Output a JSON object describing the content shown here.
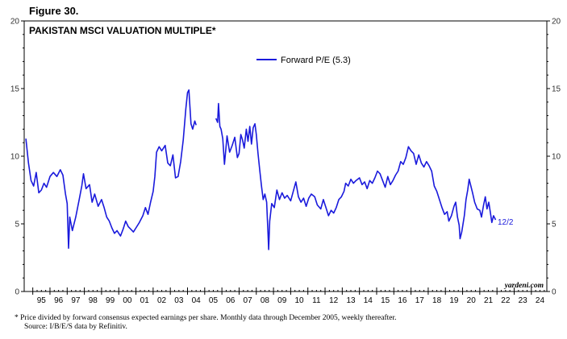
{
  "figure_label": "Figure 30.",
  "footnote": {
    "line1": "*  Price divided by forward consensus expected earnings per share. Monthly data through December 2005, weekly thereafter.",
    "line2": "Source: I/B/E/S data by Refinitiv."
  },
  "chart_data": {
    "type": "line",
    "title": "PAKISTAN MSCI VALUATION MULTIPLE*",
    "watermark": "yardeni.com",
    "end_label": "12/2",
    "ylim": [
      0,
      20
    ],
    "yticks": [
      0,
      5,
      10,
      15,
      20
    ],
    "xlim": [
      1994.5,
      2024.9
    ],
    "x_tick_labels": [
      "95",
      "96",
      "97",
      "98",
      "99",
      "00",
      "01",
      "02",
      "03",
      "04",
      "05",
      "06",
      "07",
      "08",
      "09",
      "10",
      "11",
      "12",
      "13",
      "14",
      "15",
      "16",
      "17",
      "18",
      "19",
      "20",
      "21",
      "22",
      "23",
      "24"
    ],
    "line_color": "#1a1adc",
    "legend_position": "top-center",
    "series": [
      {
        "name": "Forward P/E (5.3)",
        "segments": [
          [
            [
              1994.6,
              11.3
            ],
            [
              1994.75,
              9.5
            ],
            [
              1994.9,
              8.2
            ],
            [
              1995.05,
              7.8
            ],
            [
              1995.2,
              8.8
            ],
            [
              1995.35,
              7.3
            ],
            [
              1995.5,
              7.5
            ],
            [
              1995.65,
              8.0
            ],
            [
              1995.8,
              7.7
            ],
            [
              1996.0,
              8.5
            ],
            [
              1996.2,
              8.8
            ],
            [
              1996.4,
              8.5
            ],
            [
              1996.6,
              9.0
            ],
            [
              1996.75,
              8.6
            ],
            [
              1996.9,
              7.2
            ],
            [
              1997.0,
              6.5
            ],
            [
              1997.08,
              3.2
            ],
            [
              1997.15,
              5.5
            ],
            [
              1997.3,
              4.5
            ],
            [
              1997.5,
              5.5
            ],
            [
              1997.7,
              6.8
            ],
            [
              1997.85,
              7.8
            ],
            [
              1997.95,
              8.7
            ],
            [
              1998.1,
              7.6
            ],
            [
              1998.3,
              7.9
            ],
            [
              1998.45,
              6.6
            ],
            [
              1998.6,
              7.2
            ],
            [
              1998.8,
              6.3
            ],
            [
              1999.0,
              6.8
            ],
            [
              1999.15,
              6.2
            ],
            [
              1999.3,
              5.5
            ],
            [
              1999.45,
              5.2
            ],
            [
              1999.6,
              4.7
            ],
            [
              1999.75,
              4.3
            ],
            [
              1999.9,
              4.5
            ],
            [
              2000.1,
              4.1
            ],
            [
              2000.25,
              4.6
            ],
            [
              2000.4,
              5.2
            ],
            [
              2000.55,
              4.8
            ],
            [
              2000.7,
              4.6
            ],
            [
              2000.85,
              4.4
            ],
            [
              2001.0,
              4.7
            ],
            [
              2001.2,
              5.1
            ],
            [
              2001.4,
              5.6
            ],
            [
              2001.55,
              6.2
            ],
            [
              2001.7,
              5.7
            ],
            [
              2001.85,
              6.6
            ],
            [
              2002.0,
              7.4
            ],
            [
              2002.1,
              8.5
            ],
            [
              2002.2,
              10.3
            ],
            [
              2002.35,
              10.7
            ],
            [
              2002.5,
              10.4
            ],
            [
              2002.7,
              10.8
            ],
            [
              2002.85,
              9.5
            ],
            [
              2003.0,
              9.3
            ],
            [
              2003.15,
              10.1
            ],
            [
              2003.3,
              8.4
            ],
            [
              2003.45,
              8.5
            ],
            [
              2003.6,
              9.6
            ],
            [
              2003.75,
              11.2
            ],
            [
              2003.9,
              13.5
            ],
            [
              2004.0,
              14.7
            ],
            [
              2004.08,
              14.9
            ],
            [
              2004.2,
              12.4
            ],
            [
              2004.3,
              12.0
            ],
            [
              2004.42,
              12.6
            ],
            [
              2004.5,
              12.3
            ]
          ],
          [
            [
              2005.65,
              12.8
            ],
            [
              2005.75,
              12.5
            ],
            [
              2005.8,
              13.9
            ],
            [
              2005.88,
              12.2
            ],
            [
              2005.95,
              12.0
            ],
            [
              2006.05,
              11.3
            ],
            [
              2006.15,
              9.4
            ],
            [
              2006.3,
              11.5
            ],
            [
              2006.45,
              10.3
            ],
            [
              2006.6,
              10.8
            ],
            [
              2006.75,
              11.4
            ],
            [
              2006.9,
              9.9
            ],
            [
              2007.0,
              10.2
            ],
            [
              2007.1,
              11.6
            ],
            [
              2007.2,
              11.2
            ],
            [
              2007.3,
              10.6
            ],
            [
              2007.42,
              12.0
            ],
            [
              2007.52,
              11.1
            ],
            [
              2007.62,
              12.2
            ],
            [
              2007.72,
              10.9
            ],
            [
              2007.82,
              12.1
            ],
            [
              2007.92,
              12.4
            ],
            [
              2008.0,
              11.6
            ],
            [
              2008.1,
              10.2
            ],
            [
              2008.2,
              9.0
            ],
            [
              2008.3,
              7.8
            ],
            [
              2008.4,
              6.8
            ],
            [
              2008.5,
              7.2
            ],
            [
              2008.6,
              6.6
            ],
            [
              2008.68,
              4.3
            ],
            [
              2008.72,
              3.1
            ],
            [
              2008.78,
              5.2
            ],
            [
              2008.9,
              6.5
            ],
            [
              2009.05,
              6.2
            ],
            [
              2009.2,
              7.5
            ],
            [
              2009.35,
              6.8
            ],
            [
              2009.5,
              7.3
            ],
            [
              2009.65,
              6.9
            ],
            [
              2009.8,
              7.1
            ],
            [
              2010.0,
              6.7
            ],
            [
              2010.15,
              7.4
            ],
            [
              2010.3,
              8.1
            ],
            [
              2010.45,
              7.0
            ],
            [
              2010.6,
              6.6
            ],
            [
              2010.75,
              6.9
            ],
            [
              2010.9,
              6.3
            ],
            [
              2011.05,
              6.9
            ],
            [
              2011.2,
              7.2
            ],
            [
              2011.4,
              7.0
            ],
            [
              2011.55,
              6.4
            ],
            [
              2011.75,
              6.1
            ],
            [
              2011.9,
              6.8
            ],
            [
              2012.05,
              6.2
            ],
            [
              2012.2,
              5.6
            ],
            [
              2012.35,
              6.0
            ],
            [
              2012.5,
              5.8
            ],
            [
              2012.65,
              6.2
            ],
            [
              2012.8,
              6.8
            ],
            [
              2012.95,
              7.0
            ],
            [
              2013.1,
              7.4
            ],
            [
              2013.2,
              8.0
            ],
            [
              2013.35,
              7.8
            ],
            [
              2013.5,
              8.3
            ],
            [
              2013.65,
              8.0
            ],
            [
              2013.8,
              8.2
            ],
            [
              2014.0,
              8.4
            ],
            [
              2014.15,
              7.9
            ],
            [
              2014.3,
              8.1
            ],
            [
              2014.45,
              7.6
            ],
            [
              2014.6,
              8.2
            ],
            [
              2014.75,
              8.0
            ],
            [
              2014.9,
              8.4
            ],
            [
              2015.05,
              8.9
            ],
            [
              2015.2,
              8.7
            ],
            [
              2015.35,
              8.2
            ],
            [
              2015.5,
              7.7
            ],
            [
              2015.65,
              8.5
            ],
            [
              2015.8,
              7.9
            ],
            [
              2015.95,
              8.2
            ],
            [
              2016.1,
              8.6
            ],
            [
              2016.25,
              8.9
            ],
            [
              2016.4,
              9.6
            ],
            [
              2016.55,
              9.4
            ],
            [
              2016.7,
              9.9
            ],
            [
              2016.85,
              10.7
            ],
            [
              2017.0,
              10.4
            ],
            [
              2017.15,
              10.2
            ],
            [
              2017.3,
              9.4
            ],
            [
              2017.45,
              10.1
            ],
            [
              2017.6,
              9.5
            ],
            [
              2017.75,
              9.2
            ],
            [
              2017.9,
              9.6
            ],
            [
              2018.05,
              9.3
            ],
            [
              2018.2,
              8.9
            ],
            [
              2018.35,
              7.8
            ],
            [
              2018.5,
              7.4
            ],
            [
              2018.65,
              6.8
            ],
            [
              2018.8,
              6.2
            ],
            [
              2018.95,
              5.7
            ],
            [
              2019.1,
              5.9
            ],
            [
              2019.2,
              5.2
            ],
            [
              2019.35,
              5.6
            ],
            [
              2019.5,
              6.3
            ],
            [
              2019.6,
              6.6
            ],
            [
              2019.7,
              5.5
            ],
            [
              2019.8,
              4.9
            ],
            [
              2019.85,
              3.9
            ],
            [
              2019.95,
              4.4
            ],
            [
              2020.1,
              5.6
            ],
            [
              2020.2,
              6.8
            ],
            [
              2020.3,
              7.5
            ],
            [
              2020.38,
              8.3
            ],
            [
              2020.48,
              7.8
            ],
            [
              2020.58,
              7.3
            ],
            [
              2020.7,
              6.6
            ],
            [
              2020.85,
              6.1
            ],
            [
              2021.0,
              6.0
            ],
            [
              2021.1,
              5.5
            ],
            [
              2021.22,
              6.4
            ],
            [
              2021.32,
              7.0
            ],
            [
              2021.42,
              6.1
            ],
            [
              2021.52,
              6.6
            ],
            [
              2021.62,
              5.8
            ],
            [
              2021.7,
              5.1
            ],
            [
              2021.8,
              5.6
            ],
            [
              2021.92,
              5.3
            ]
          ]
        ]
      }
    ]
  }
}
